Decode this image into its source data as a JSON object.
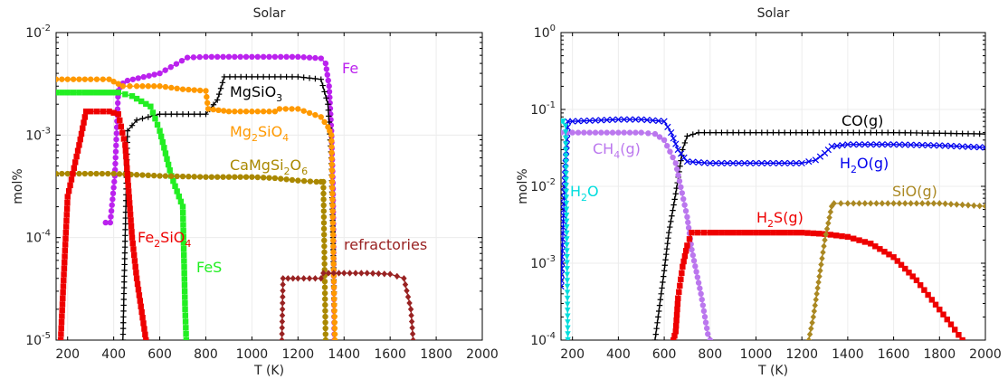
{
  "chart_data": [
    {
      "type": "line",
      "title": "Solar",
      "xlabel": "T (K)",
      "ylabel": "mol%",
      "yscale": "log",
      "xlim": [
        150,
        2000
      ],
      "ylim": [
        1e-05,
        0.01
      ],
      "grid": true,
      "xticks": [
        "200",
        "400",
        "600",
        "800",
        "1000",
        "1200",
        "1400",
        "1600",
        "1800",
        "2000"
      ],
      "yticks": [
        {
          "base": "10",
          "exp": "-5"
        },
        {
          "base": "10",
          "exp": "-4"
        },
        {
          "base": "10",
          "exp": "-3"
        },
        {
          "base": "10",
          "exp": "-2"
        }
      ],
      "series": [
        {
          "color": "#b2e",
          "marker": "circle",
          "x": [
            365,
            385,
            405,
            420,
            440,
            460,
            600,
            720,
            800,
            900,
            1000,
            1100,
            1200,
            1300,
            1320,
            1335,
            1345,
            1352,
            1358
          ],
          "y": [
            0.00014,
            0.00014,
            0.0004,
            0.0027,
            0.0032,
            0.0034,
            0.004,
            0.0057,
            0.0058,
            0.0058,
            0.0058,
            0.0058,
            0.0058,
            0.0056,
            0.005,
            0.003,
            0.0011,
            0.0003,
            1e-05
          ]
        },
        {
          "color": "#000",
          "marker": "plus",
          "x": [
            440,
            460,
            500,
            550,
            600,
            700,
            800,
            850,
            880,
            1000,
            1100,
            1200,
            1300,
            1330,
            1345,
            1352,
            1360
          ],
          "y": [
            1e-05,
            0.0011,
            0.0014,
            0.0015,
            0.0016,
            0.0016,
            0.0016,
            0.0022,
            0.0037,
            0.0037,
            0.0037,
            0.0037,
            0.0035,
            0.002,
            0.0006,
            0.0001,
            1e-05
          ]
        },
        {
          "color": "#f90",
          "marker": "circle",
          "x": [
            150,
            300,
            380,
            440,
            500,
            600,
            700,
            800,
            810,
            900,
            1000,
            1100,
            1120,
            1200,
            1300,
            1330,
            1345,
            1360
          ],
          "y": [
            0.0035,
            0.0035,
            0.0035,
            0.003,
            0.003,
            0.003,
            0.0028,
            0.0027,
            0.0018,
            0.0017,
            0.0017,
            0.0017,
            0.0018,
            0.0018,
            0.0015,
            0.0012,
            0.001,
            1e-05
          ]
        },
        {
          "color": "#2e2",
          "marker": "square",
          "x": [
            150,
            300,
            420,
            480,
            560,
            600,
            650,
            700,
            710,
            715
          ],
          "y": [
            0.0026,
            0.0026,
            0.0026,
            0.0024,
            0.0019,
            0.0011,
            0.0004,
            0.0002,
            2e-05,
            1e-05
          ]
        },
        {
          "color": "#a80",
          "marker": "circle",
          "x": [
            150,
            400,
            600,
            800,
            1000,
            1100,
            1200,
            1280,
            1300,
            1310,
            1320
          ],
          "y": [
            0.00042,
            0.00042,
            0.0004,
            0.00039,
            0.00039,
            0.00038,
            0.00036,
            0.00035,
            0.00035,
            0.00035,
            1e-05
          ]
        },
        {
          "color": "#e00",
          "marker": "square",
          "x": [
            170,
            200,
            250,
            280,
            300,
            380,
            420,
            450,
            480,
            500,
            540
          ],
          "y": [
            1e-05,
            0.00025,
            0.0008,
            0.0017,
            0.0017,
            0.0017,
            0.0016,
            0.0008,
            0.0001,
            4e-05,
            1e-05
          ]
        },
        {
          "color": "#922",
          "marker": "diamond",
          "x": [
            1130,
            1135,
            1200,
            1300,
            1310,
            1400,
            1500,
            1600,
            1660,
            1690,
            1700
          ],
          "y": [
            1e-05,
            4e-05,
            4e-05,
            4e-05,
            4.5e-05,
            4.5e-05,
            4.5e-05,
            4.4e-05,
            4e-05,
            2e-05,
            1e-05
          ]
        }
      ],
      "annotations": [
        {
          "parts": [
            {
              "t": "Fe"
            }
          ],
          "color": "#b2e"
        },
        {
          "parts": [
            {
              "t": "MgSiO"
            },
            {
              "t": "3",
              "sub": true
            }
          ],
          "color": "#000"
        },
        {
          "parts": [
            {
              "t": "Mg"
            },
            {
              "t": "2",
              "sub": true
            },
            {
              "t": "SiO"
            },
            {
              "t": "4",
              "sub": true
            }
          ],
          "color": "#f90"
        },
        {
          "parts": [
            {
              "t": "CaMgSi"
            },
            {
              "t": "2",
              "sub": true
            },
            {
              "t": "O"
            },
            {
              "t": "6",
              "sub": true
            }
          ],
          "color": "#a80"
        },
        {
          "parts": [
            {
              "t": "Fe"
            },
            {
              "t": "2",
              "sub": true
            },
            {
              "t": "SiO"
            },
            {
              "t": "4",
              "sub": true
            }
          ],
          "color": "#e00"
        },
        {
          "parts": [
            {
              "t": "FeS"
            }
          ],
          "color": "#2e2"
        },
        {
          "parts": [
            {
              "t": "refractories"
            }
          ],
          "color": "#922"
        }
      ]
    },
    {
      "type": "line",
      "title": "Solar",
      "xlabel": "T (K)",
      "ylabel": "mol%",
      "yscale": "log",
      "xlim": [
        150,
        2000
      ],
      "ylim": [
        0.0001,
        1
      ],
      "grid": true,
      "xticks": [
        "200",
        "400",
        "600",
        "800",
        "1000",
        "1200",
        "1400",
        "1600",
        "1800",
        "2000"
      ],
      "yticks": [
        {
          "base": "10",
          "exp": "-4"
        },
        {
          "base": "10",
          "exp": "-3"
        },
        {
          "base": "10",
          "exp": "-2"
        },
        {
          "base": "10",
          "exp": "-1"
        },
        {
          "base": "10",
          "exp": "0"
        }
      ],
      "series": [
        {
          "color": "#000",
          "marker": "plus",
          "x": [
            560,
            600,
            620,
            650,
            680,
            700,
            750,
            800,
            1000,
            1200,
            1400,
            1600,
            1800,
            2000
          ],
          "y": [
            0.0001,
            0.0008,
            0.0025,
            0.008,
            0.03,
            0.045,
            0.05,
            0.05,
            0.05,
            0.05,
            0.05,
            0.05,
            0.049,
            0.048
          ]
        },
        {
          "color": "#00e",
          "marker": "cross",
          "x": [
            150,
            160,
            170,
            180,
            200,
            300,
            400,
            500,
            600,
            630,
            660,
            700,
            800,
            900,
            1000,
            1200,
            1260,
            1300,
            1330,
            1400,
            1600,
            1800,
            2000
          ],
          "y": [
            0.0005,
            0.0035,
            0.02,
            0.07,
            0.07,
            0.072,
            0.074,
            0.074,
            0.07,
            0.05,
            0.03,
            0.021,
            0.02,
            0.02,
            0.02,
            0.02,
            0.022,
            0.027,
            0.033,
            0.035,
            0.035,
            0.034,
            0.032
          ]
        },
        {
          "color": "#b7e",
          "marker": "circle",
          "x": [
            150,
            200,
            300,
            400,
            500,
            560,
            600,
            650,
            700,
            720,
            760,
            790,
            800
          ],
          "y": [
            0.05,
            0.05,
            0.05,
            0.05,
            0.05,
            0.048,
            0.04,
            0.02,
            0.004,
            0.0015,
            0.0004,
            0.00012,
            0.0001
          ]
        },
        {
          "color": "#0dd",
          "marker": "tri",
          "x": [
            150,
            155,
            160,
            170,
            180
          ],
          "y": [
            0.07,
            0.07,
            0.07,
            0.06,
            0.0001
          ]
        },
        {
          "color": "#e00",
          "marker": "square",
          "x": [
            640,
            650,
            660,
            680,
            700,
            720,
            800,
            1000,
            1200,
            1300,
            1400,
            1500,
            1600,
            1700,
            1800,
            1850,
            1900
          ],
          "y": [
            0.0001,
            0.00013,
            0.00035,
            0.0009,
            0.0017,
            0.0025,
            0.0025,
            0.0025,
            0.0025,
            0.0024,
            0.0022,
            0.0018,
            0.0012,
            0.0006,
            0.00025,
            0.00016,
            0.0001
          ]
        },
        {
          "color": "#a82",
          "marker": "diamond",
          "x": [
            1230,
            1250,
            1280,
            1300,
            1330,
            1340,
            1400,
            1600,
            1800,
            2000
          ],
          "y": [
            0.0001,
            0.0002,
            0.0008,
            0.002,
            0.0055,
            0.006,
            0.006,
            0.006,
            0.006,
            0.0055
          ]
        }
      ],
      "annotations": [
        {
          "parts": [
            {
              "t": "CO(g)"
            }
          ],
          "color": "#000"
        },
        {
          "parts": [
            {
              "t": "CH"
            },
            {
              "t": "4",
              "sub": true
            },
            {
              "t": "(g)"
            }
          ],
          "color": "#b7e"
        },
        {
          "parts": [
            {
              "t": "H"
            },
            {
              "t": "2",
              "sub": true
            },
            {
              "t": "O(g)"
            }
          ],
          "color": "#00e"
        },
        {
          "parts": [
            {
              "t": "H"
            },
            {
              "t": "2",
              "sub": true
            },
            {
              "t": "O"
            }
          ],
          "color": "#0dd"
        },
        {
          "parts": [
            {
              "t": "SiO(g)"
            }
          ],
          "color": "#a82"
        },
        {
          "parts": [
            {
              "t": "H"
            },
            {
              "t": "2",
              "sub": true
            },
            {
              "t": "S(g)"
            }
          ],
          "color": "#e00"
        }
      ]
    }
  ]
}
